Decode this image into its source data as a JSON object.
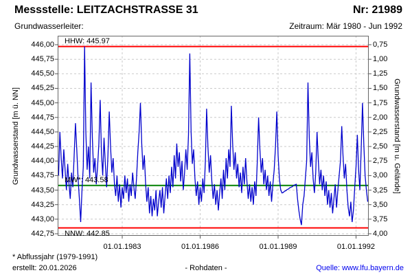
{
  "header": {
    "title": "Messstelle: LEITZACHSTRASSE 31",
    "number": "Nr: 21989",
    "aquifer_label": "Grundwasserleiter:",
    "period": "Zeitraum: Mär 1980 - Jun 1992"
  },
  "footer": {
    "note": "* Abflussjahr (1979-1991)",
    "created": "erstellt: 20.01.2026",
    "center": "- Rohdaten -",
    "source": "Quelle: www.lfu.bayern.de"
  },
  "colors": {
    "series": "#0000cc",
    "hhw": "#ff0000",
    "nnw": "#ff0000",
    "mw": "#008000",
    "grid": "#c9c9c9",
    "source_link": "#0000ee"
  },
  "chart_data": {
    "type": "line",
    "ylabel_left": "Grundwasserstand [m ü. NN]",
    "ylabel_right": "Grundwasserstand [m u. Gelände]",
    "x_range": [
      1980.515,
      1992.49
    ],
    "y_range": [
      442.714,
      446.154
    ],
    "grid": true,
    "y_ticks": [
      {
        "v": 446.0,
        "left": "446,00",
        "right": "0,75"
      },
      {
        "v": 445.75,
        "left": "445,75",
        "right": "1,00"
      },
      {
        "v": 445.5,
        "left": "445,50",
        "right": "1,25"
      },
      {
        "v": 445.25,
        "left": "445,25",
        "right": "1,50"
      },
      {
        "v": 445.0,
        "left": "445,00",
        "right": "1,75"
      },
      {
        "v": 444.75,
        "left": "444,75",
        "right": "2,00"
      },
      {
        "v": 444.5,
        "left": "444,50",
        "right": "2,25"
      },
      {
        "v": 444.25,
        "left": "444,25",
        "right": "2,50"
      },
      {
        "v": 444.0,
        "left": "444,00",
        "right": "2,75"
      },
      {
        "v": 443.75,
        "left": "443,75",
        "right": "3,00"
      },
      {
        "v": 443.5,
        "left": "443,50",
        "right": "3,25"
      },
      {
        "v": 443.25,
        "left": "443,25",
        "right": "3,50"
      },
      {
        "v": 443.0,
        "left": "443,00",
        "right": "3,75"
      },
      {
        "v": 442.75,
        "left": "442,75",
        "right": "4,00"
      }
    ],
    "x_ticks": [
      {
        "t": 1983.0,
        "label": "01.01.1983"
      },
      {
        "t": 1986.0,
        "label": "01.01.1986"
      },
      {
        "t": 1989.0,
        "label": "01.01.1989"
      },
      {
        "t": 1992.0,
        "label": "01.01.1992"
      }
    ],
    "reference_lines": [
      {
        "name": "HHW",
        "label": "HHW: 445.97",
        "value": 445.97,
        "color": "#ff0000",
        "label_pos": "above"
      },
      {
        "name": "MW",
        "label": "MW*: 443.58",
        "value": 443.58,
        "color": "#008000",
        "label_pos": "above"
      },
      {
        "name": "NNW",
        "label": "NNW: 442.85",
        "value": 442.85,
        "color": "#ff0000",
        "label_pos": "below"
      }
    ],
    "series": [
      {
        "name": "Grundwasserstand Rohdaten",
        "color": "#0000cc",
        "t0": 1980.55,
        "dt": 0.05,
        "values": [
          443.75,
          444.5,
          444.05,
          443.7,
          444.2,
          443.85,
          443.5,
          443.95,
          443.6,
          443.35,
          443.8,
          443.55,
          444.1,
          444.65,
          444.2,
          443.7,
          443.35,
          442.95,
          443.5,
          443.9,
          445.97,
          444.5,
          443.85,
          444.25,
          443.7,
          445.35,
          444.4,
          443.8,
          444.05,
          443.6,
          443.9,
          444.3,
          445.05,
          444.15,
          443.75,
          444.4,
          443.95,
          443.55,
          444.1,
          444.85,
          444.25,
          443.8,
          444.05,
          443.6,
          443.4,
          443.75,
          443.3,
          443.6,
          443.2,
          443.55,
          443.35,
          443.75,
          443.45,
          443.7,
          443.3,
          443.6,
          443.4,
          443.8,
          443.55,
          443.35,
          443.7,
          444.15,
          444.5,
          445.0,
          444.3,
          443.85,
          444.1,
          443.6,
          443.3,
          443.55,
          443.1,
          443.4,
          443.05,
          443.35,
          443.15,
          443.5,
          443.05,
          443.3,
          443.5,
          443.2,
          443.55,
          443.1,
          443.4,
          443.7,
          443.35,
          443.75,
          443.45,
          443.9,
          443.55,
          444.1,
          443.7,
          444.3,
          443.9,
          444.15,
          443.65,
          444.0,
          443.5,
          443.8,
          444.2,
          443.85,
          444.45,
          445.85,
          444.5,
          443.95,
          444.2,
          443.7,
          443.4,
          443.65,
          443.25,
          443.55,
          443.3,
          443.7,
          443.45,
          444.0,
          444.9,
          444.25,
          443.8,
          444.1,
          443.65,
          443.35,
          443.6,
          443.25,
          443.5,
          443.15,
          443.45,
          443.7,
          443.35,
          443.85,
          443.5,
          444.05,
          443.7,
          444.2,
          443.9,
          444.95,
          444.3,
          443.85,
          444.15,
          443.7,
          443.95,
          443.55,
          443.8,
          443.45,
          443.9,
          443.6,
          444.05,
          443.65,
          443.35,
          443.6,
          443.3,
          443.55,
          443.25,
          443.65,
          443.4,
          444.0,
          444.75,
          444.2,
          443.8,
          444.05,
          443.6,
          443.85,
          443.5,
          443.75,
          443.4,
          443.65,
          443.3,
          443.6,
          443.85,
          444.25,
          444.85,
          444.1,
          443.7,
          443.5,
          443.45,
          443.46,
          443.48,
          443.49,
          443.51,
          443.52,
          443.54,
          443.55,
          443.56,
          443.58,
          443.59,
          443.6,
          443.35,
          443.15,
          443.0,
          442.9,
          443.25,
          443.4,
          443.7,
          444.0,
          445.35,
          444.4,
          443.9,
          444.15,
          443.7,
          443.45,
          443.8,
          444.5,
          444.0,
          443.6,
          443.85,
          443.5,
          443.75,
          443.4,
          443.65,
          443.25,
          443.5,
          443.2,
          443.45,
          443.1,
          443.35,
          443.6,
          443.2,
          443.5,
          443.75,
          444.0,
          444.6,
          444.1,
          443.7,
          443.95,
          443.5,
          443.2,
          443.05,
          443.3,
          442.95,
          443.15,
          443.55,
          443.9,
          444.45,
          443.85,
          443.5,
          444.2,
          445.0,
          444.3,
          443.75,
          443.5,
          443.3
        ]
      }
    ]
  }
}
